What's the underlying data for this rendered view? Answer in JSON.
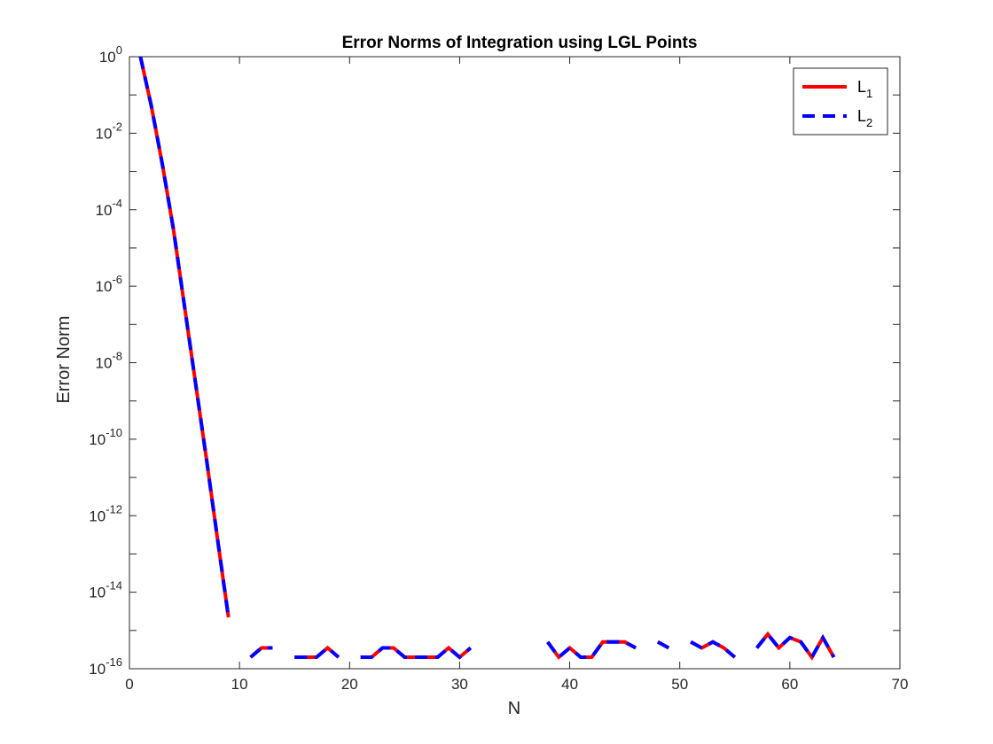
{
  "chart_data": {
    "type": "line",
    "title": "Error Norms of Integration using LGL Points",
    "xlabel": "N",
    "ylabel": "Error Norm",
    "xlim": [
      0,
      70
    ],
    "ylim_exponent": [
      -16,
      0
    ],
    "yscale": "log",
    "xticks": [
      "0",
      "10",
      "20",
      "30",
      "40",
      "50",
      "60",
      "70"
    ],
    "yticks": [
      {
        "base": "10",
        "exp": "0"
      },
      {
        "base": "10",
        "exp": "-2"
      },
      {
        "base": "10",
        "exp": "-4"
      },
      {
        "base": "10",
        "exp": "-6"
      },
      {
        "base": "10",
        "exp": "-8"
      },
      {
        "base": "10",
        "exp": "-10"
      },
      {
        "base": "10",
        "exp": "-12"
      },
      {
        "base": "10",
        "exp": "-14"
      },
      {
        "base": "10",
        "exp": "-16"
      }
    ],
    "grid": false,
    "legend_position": "top-right",
    "legend": [
      {
        "base": "L",
        "sub": "1",
        "color": "#ff0000",
        "style": "solid"
      },
      {
        "base": "L",
        "sub": "2",
        "color": "#0000ff",
        "style": "dashed"
      }
    ],
    "series": [
      {
        "color": "#ff0000",
        "style": "solid",
        "x": [
          1,
          2,
          3,
          4,
          5,
          6,
          7,
          8,
          9,
          10,
          11,
          12,
          13,
          14,
          15,
          16,
          17,
          18,
          19,
          20,
          21,
          22,
          23,
          24,
          25,
          26,
          27,
          28,
          29,
          30,
          31,
          32,
          33,
          34,
          35,
          36,
          37,
          38,
          39,
          40,
          41,
          42,
          43,
          44,
          45,
          46,
          47,
          48,
          49,
          50,
          51,
          52,
          53,
          54,
          55,
          56,
          57,
          58,
          59,
          60,
          61,
          62,
          63,
          64
        ],
        "y": [
          1,
          0.05,
          0.0015,
          3e-05,
          3e-07,
          3e-09,
          3e-11,
          2.5e-13,
          2.2e-15,
          null,
          2e-16,
          3.5e-16,
          3.5e-16,
          null,
          2e-16,
          2e-16,
          2e-16,
          3.5e-16,
          2e-16,
          null,
          2e-16,
          2e-16,
          3.5e-16,
          3.5e-16,
          2e-16,
          2e-16,
          2e-16,
          2e-16,
          3.5e-16,
          2e-16,
          3.5e-16,
          null,
          null,
          null,
          null,
          null,
          null,
          5e-16,
          2e-16,
          3.5e-16,
          2e-16,
          2e-16,
          5e-16,
          5e-16,
          5e-16,
          3.5e-16,
          null,
          5e-16,
          3.5e-16,
          null,
          5e-16,
          3.5e-16,
          5e-16,
          3.5e-16,
          2e-16,
          null,
          3.5e-16,
          8e-16,
          3.5e-16,
          6.5e-16,
          5e-16,
          2e-16,
          6.5e-16,
          2e-16
        ]
      },
      {
        "color": "#0000ff",
        "style": "dashed",
        "x": [
          1,
          2,
          3,
          4,
          5,
          6,
          7,
          8,
          9,
          10,
          11,
          12,
          13,
          14,
          15,
          16,
          17,
          18,
          19,
          20,
          21,
          22,
          23,
          24,
          25,
          26,
          27,
          28,
          29,
          30,
          31,
          32,
          33,
          34,
          35,
          36,
          37,
          38,
          39,
          40,
          41,
          42,
          43,
          44,
          45,
          46,
          47,
          48,
          49,
          50,
          51,
          52,
          53,
          54,
          55,
          56,
          57,
          58,
          59,
          60,
          61,
          62,
          63,
          64
        ],
        "y": [
          1,
          0.05,
          0.0015,
          3e-05,
          3e-07,
          3e-09,
          3e-11,
          2.5e-13,
          2.2e-15,
          null,
          2e-16,
          3.5e-16,
          3.5e-16,
          null,
          2e-16,
          2e-16,
          2e-16,
          3.5e-16,
          2e-16,
          null,
          2e-16,
          2e-16,
          3.5e-16,
          3.5e-16,
          2e-16,
          2e-16,
          2e-16,
          2e-16,
          3.5e-16,
          2e-16,
          3.5e-16,
          null,
          null,
          null,
          null,
          null,
          null,
          5e-16,
          2e-16,
          3.5e-16,
          2e-16,
          2e-16,
          5e-16,
          5e-16,
          5e-16,
          3.5e-16,
          null,
          5e-16,
          3.5e-16,
          null,
          5e-16,
          3.5e-16,
          5e-16,
          3.5e-16,
          2e-16,
          null,
          3.5e-16,
          8e-16,
          3.5e-16,
          6.5e-16,
          5e-16,
          2e-16,
          6.5e-16,
          2e-16
        ]
      }
    ]
  }
}
